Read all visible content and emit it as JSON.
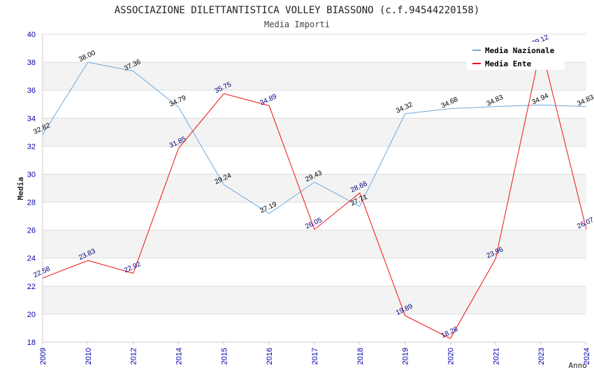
{
  "chart_data": {
    "type": "line",
    "title": "ASSOCIAZIONE DILETTANTISTICA VOLLEY BIASSONO (c.f.94544220158)",
    "subtitle": "Media Importi",
    "xlabel": "Anno",
    "ylabel": "Media",
    "ylim": [
      18,
      40
    ],
    "yticks": [
      18,
      20,
      22,
      24,
      26,
      28,
      30,
      32,
      34,
      36,
      38,
      40
    ],
    "categories": [
      "2009",
      "2010",
      "2012",
      "2014",
      "2015",
      "2016",
      "2017",
      "2018",
      "2019",
      "2020",
      "2021",
      "2023",
      "2024"
    ],
    "series": [
      {
        "name": "Media Nazionale",
        "color": "#6fa8dc",
        "label_color": "#000000",
        "values": [
          32.82,
          38.0,
          37.36,
          34.79,
          29.24,
          27.19,
          29.43,
          27.71,
          34.32,
          34.68,
          34.83,
          34.94,
          34.83
        ],
        "labels": [
          "32.82",
          "38.00",
          "37.36",
          "34.79",
          "29.24",
          "27.19",
          "29.43",
          "27.71",
          "34.32",
          "34.68",
          "34.83",
          "34.94",
          "34.83"
        ]
      },
      {
        "name": "Media Ente",
        "color": "#ee1111",
        "label_color": "#000080",
        "values": [
          22.58,
          23.83,
          22.92,
          31.85,
          35.75,
          34.89,
          26.05,
          28.66,
          19.89,
          18.26,
          23.96,
          39.12,
          26.07
        ],
        "labels": [
          "22.58",
          "23.83",
          "22.92",
          "31.85",
          "35.75",
          "34.89",
          "26.05",
          "28.66",
          "19.89",
          "18.26",
          "23.96",
          "39.12",
          "26.07"
        ]
      }
    ],
    "legend": "top-right",
    "grid": true,
    "tick_color": "#0000aa"
  }
}
